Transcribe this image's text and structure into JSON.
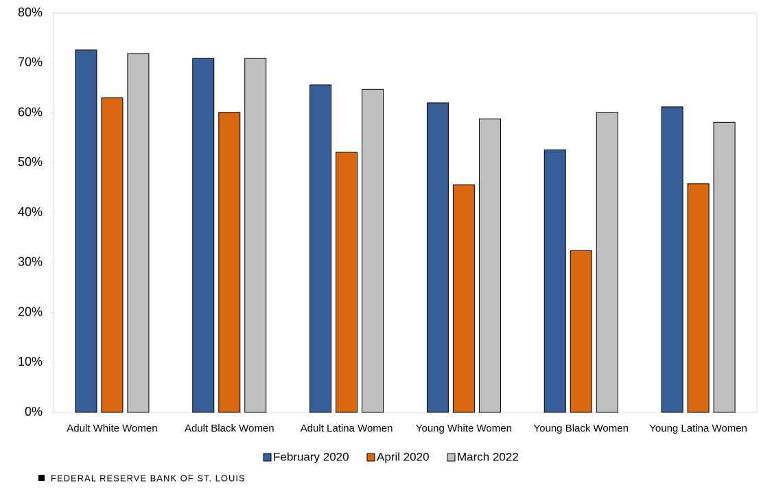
{
  "chart_data": {
    "type": "bar",
    "categories": [
      "Adult White Women",
      "Adult Black Women",
      "Adult Latina Women",
      "Young White Women",
      "Young Black Women",
      "Young Latina Women"
    ],
    "series": [
      {
        "name": "February 2020",
        "color": "#375e97",
        "values": [
          72.6,
          70.9,
          65.6,
          62.0,
          52.6,
          61.2
        ]
      },
      {
        "name": "April 2020",
        "color": "#d9670f",
        "values": [
          63.0,
          60.1,
          52.1,
          45.6,
          32.4,
          45.8
        ]
      },
      {
        "name": "March 2022",
        "color": "#bfbfbf",
        "values": [
          71.9,
          70.9,
          64.7,
          58.8,
          60.1,
          58.1
        ]
      }
    ],
    "ylim": [
      0,
      80
    ],
    "yticks": [
      {
        "value": 0,
        "label": "0%"
      },
      {
        "value": 10,
        "label": "10%"
      },
      {
        "value": 20,
        "label": "20%"
      },
      {
        "value": 30,
        "label": "30%"
      },
      {
        "value": 40,
        "label": "40%"
      },
      {
        "value": 50,
        "label": "50%"
      },
      {
        "value": 60,
        "label": "60%"
      },
      {
        "value": 70,
        "label": "70%"
      },
      {
        "value": 80,
        "label": "80%"
      }
    ],
    "grid": false,
    "legend": "bottom",
    "source": "FEDERAL RESERVE BANK OF ST. LOUIS"
  }
}
